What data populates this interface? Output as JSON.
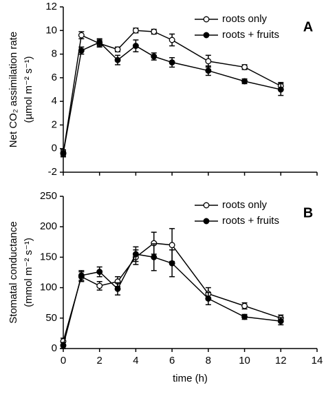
{
  "chart_data": [
    {
      "type": "line",
      "panel_label": "A",
      "ylabel": [
        "Net CO₂ assimilation rate",
        "(µmol m⁻² s⁻¹)"
      ],
      "xlim": [
        0,
        14
      ],
      "ylim": [
        -2,
        12
      ],
      "yticks": [
        -2,
        0,
        2,
        4,
        6,
        8,
        10,
        12
      ],
      "x": [
        0,
        1,
        2,
        3,
        4,
        5,
        6,
        8,
        10,
        12
      ],
      "series": [
        {
          "name": "roots only",
          "color": "#000000",
          "marker": "open",
          "values": [
            -0.4,
            9.6,
            8.9,
            8.4,
            10.0,
            9.9,
            9.2,
            7.4,
            6.9,
            5.3
          ],
          "errors": [
            0.3,
            0.3,
            0.3,
            0.2,
            0.2,
            0.2,
            0.5,
            0.5,
            0.2,
            0.3
          ]
        },
        {
          "name": "roots + fruits",
          "color": "#000000",
          "marker": "filled",
          "values": [
            -0.4,
            8.3,
            9.0,
            7.5,
            8.7,
            7.8,
            7.3,
            6.6,
            5.7,
            5.0
          ],
          "errors": [
            0.2,
            0.3,
            0.3,
            0.4,
            0.5,
            0.3,
            0.4,
            0.4,
            0.2,
            0.5
          ]
        }
      ]
    },
    {
      "type": "line",
      "panel_label": "B",
      "ylabel": [
        "Stomatal conductance",
        "(mmol m⁻² s⁻¹)"
      ],
      "xlabel": "time (h)",
      "xlim": [
        0,
        14
      ],
      "xticks": [
        0,
        2,
        4,
        6,
        8,
        10,
        12,
        14
      ],
      "ylim": [
        0,
        250
      ],
      "yticks": [
        0,
        50,
        100,
        150,
        200,
        250
      ],
      "x": [
        0,
        1,
        2,
        3,
        4,
        5,
        6,
        8,
        10,
        12
      ],
      "series": [
        {
          "name": "roots only",
          "color": "#000000",
          "marker": "open",
          "values": [
            12,
            118,
            103,
            110,
            150,
            173,
            170,
            90,
            70,
            50
          ],
          "errors": [
            5,
            8,
            7,
            8,
            12,
            18,
            27,
            10,
            5,
            5
          ]
        },
        {
          "name": "roots + fruits",
          "color": "#000000",
          "marker": "filled",
          "values": [
            5,
            120,
            126,
            98,
            155,
            150,
            140,
            82,
            52,
            45
          ],
          "errors": [
            5,
            8,
            8,
            10,
            12,
            22,
            22,
            10,
            4,
            6
          ]
        }
      ]
    }
  ]
}
